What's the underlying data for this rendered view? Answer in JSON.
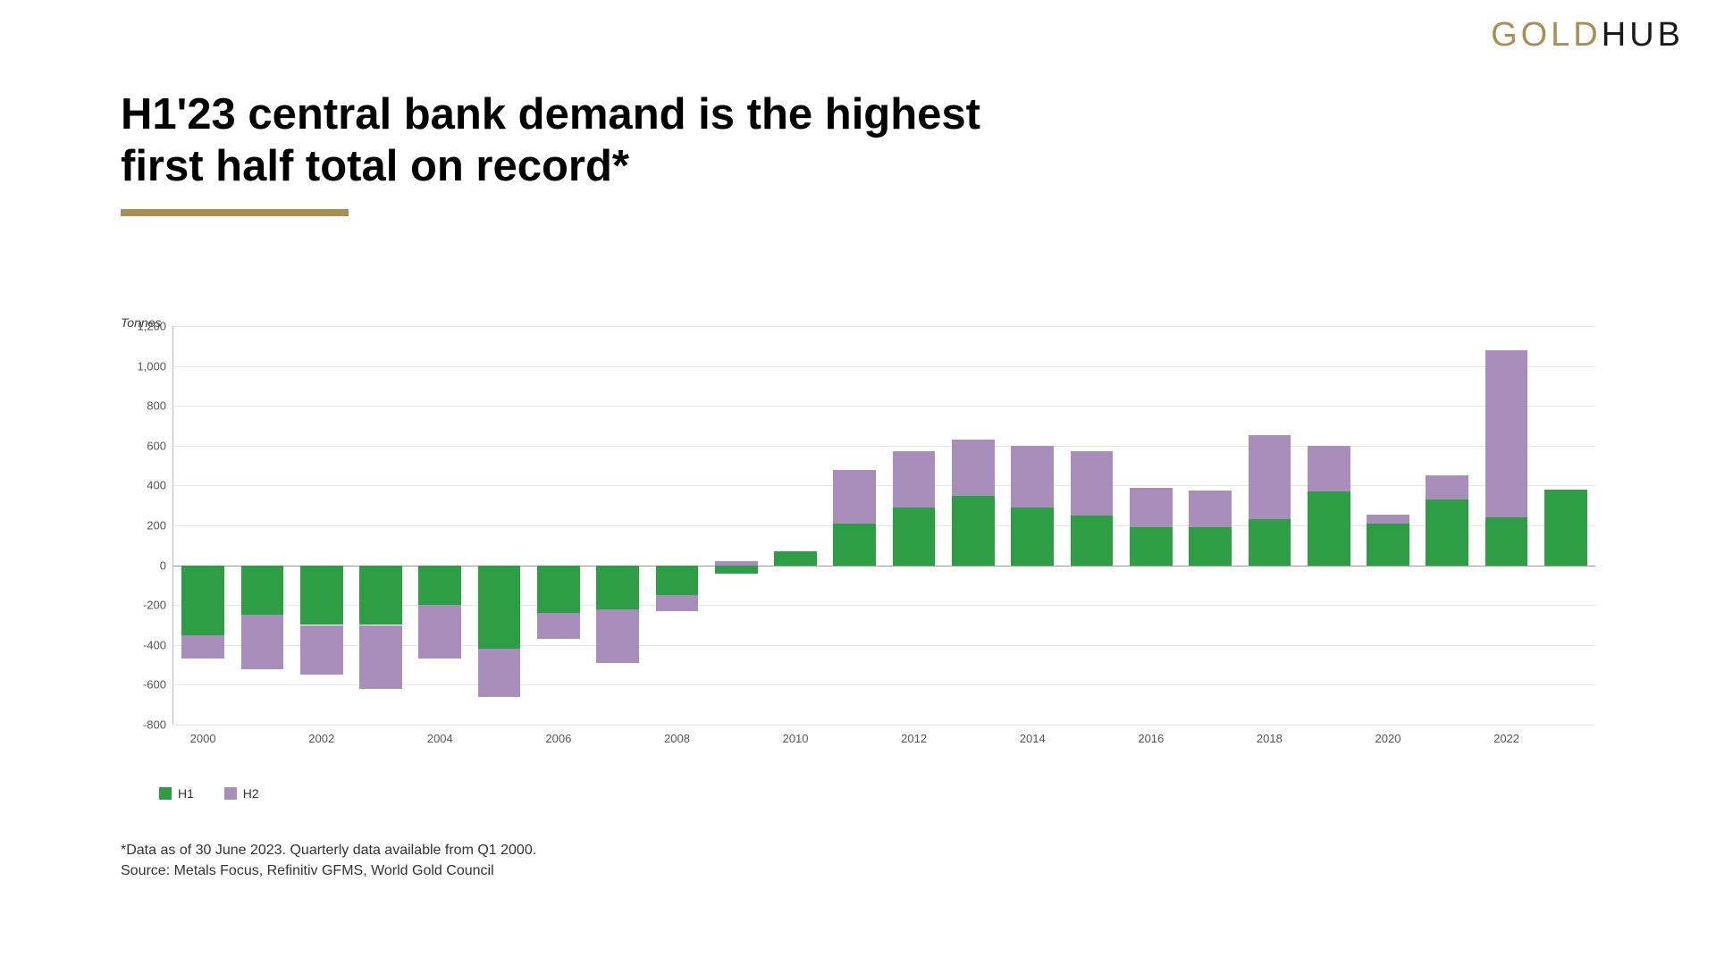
{
  "logo": {
    "part1": "GOLD",
    "part2": "HUB",
    "color1": "#a99052",
    "color2": "#1a1a1a"
  },
  "title": {
    "line1": "H1'23 central bank demand is the highest",
    "line2": "first half total on record*",
    "underline_color": "#a99052"
  },
  "chart": {
    "type": "stacked-bar",
    "y_unit_label": "Tonnes",
    "ylim": [
      -800,
      1200
    ],
    "ytick_step": 200,
    "yticks": [
      -800,
      -600,
      -400,
      -200,
      0,
      200,
      400,
      600,
      800,
      1000,
      1200
    ],
    "grid_color": "#e6e6e6",
    "axis_color": "#bbbbbb",
    "background_color": "#ffffff",
    "label_fontsize": 13,
    "bar_gap_ratio": 0.28,
    "categories": [
      "2000",
      "2001",
      "2002",
      "2003",
      "2004",
      "2005",
      "2006",
      "2007",
      "2008",
      "2009",
      "2010",
      "2011",
      "2012",
      "2013",
      "2014",
      "2015",
      "2016",
      "2017",
      "2018",
      "2019",
      "2020",
      "2021",
      "2022",
      "2023"
    ],
    "x_tick_labels": [
      "2000",
      "",
      "2002",
      "",
      "2004",
      "",
      "2006",
      "",
      "2008",
      "",
      "2010",
      "",
      "2012",
      "",
      "2014",
      "",
      "2016",
      "",
      "2018",
      "",
      "2020",
      "",
      "2022",
      ""
    ],
    "series": [
      {
        "name": "H1",
        "color": "#2e9e44",
        "values": [
          -350,
          -250,
          -300,
          -300,
          -200,
          -420,
          -240,
          -220,
          -150,
          -40,
          70,
          210,
          290,
          350,
          290,
          250,
          190,
          190,
          230,
          370,
          210,
          330,
          240,
          380
        ]
      },
      {
        "name": "H2",
        "color": "#a98dba",
        "values": [
          -120,
          -270,
          -250,
          -320,
          -270,
          -240,
          -130,
          -270,
          -80,
          20,
          0,
          270,
          280,
          280,
          310,
          320,
          200,
          185,
          425,
          230,
          45,
          120,
          840,
          0
        ]
      }
    ]
  },
  "legend": {
    "items": [
      {
        "label": "H1",
        "color": "#2e9e44"
      },
      {
        "label": "H2",
        "color": "#a98dba"
      }
    ]
  },
  "footnotes": {
    "line1": "*Data as of 30 June 2023. Quarterly data available from Q1 2000.",
    "line2": "Source: Metals Focus, Refinitiv GFMS, World Gold Council"
  }
}
